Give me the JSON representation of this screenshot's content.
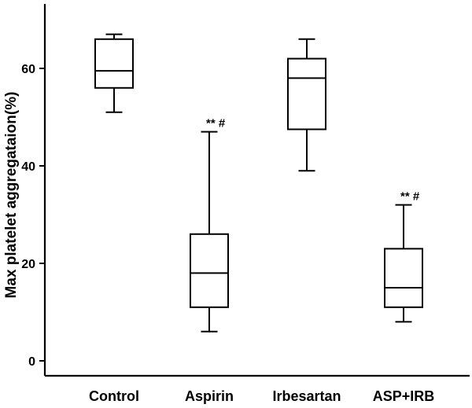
{
  "chart_data": {
    "type": "box",
    "title": "",
    "xlabel": "",
    "ylabel": "Max platelet aggregataion(%)",
    "ylim": [
      -3,
      75
    ],
    "yticks": [
      0,
      20,
      40,
      60
    ],
    "grid": false,
    "legend": "none",
    "categories": [
      "Control",
      "Aspirin",
      "Irbesartan",
      "ASP+IRB"
    ],
    "boxes": [
      {
        "category": "Control",
        "min": 51,
        "q1": 56,
        "median": 59.5,
        "q3": 66,
        "max": 67,
        "annotation": ""
      },
      {
        "category": "Aspirin",
        "min": 6,
        "q1": 11,
        "median": 18,
        "q3": 26,
        "max": 47,
        "annotation": "** #"
      },
      {
        "category": "Irbesartan",
        "min": 39,
        "q1": 47.5,
        "median": 58,
        "q3": 62,
        "max": 66,
        "annotation": ""
      },
      {
        "category": "ASP+IRB",
        "min": 8,
        "q1": 11,
        "median": 15,
        "q3": 23,
        "max": 32,
        "annotation": "** #"
      }
    ],
    "colors": {
      "box_fill": "#ffffff",
      "stroke": "#000000"
    }
  }
}
